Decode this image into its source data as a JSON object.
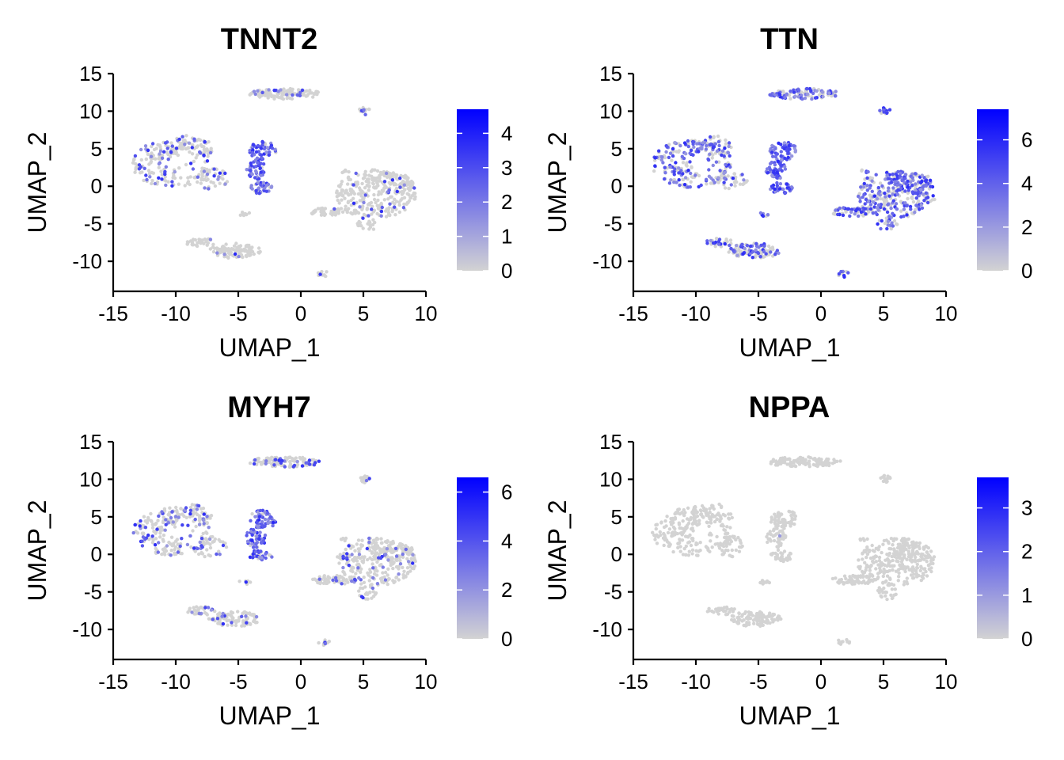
{
  "chart_data": [
    {
      "type": "scatter",
      "title": "TNNT2",
      "xlabel": "UMAP_1",
      "ylabel": "UMAP_2",
      "xlim": [
        -15,
        10
      ],
      "ylim": [
        -14,
        15
      ],
      "xticks": [
        -15,
        -10,
        -5,
        0,
        5,
        10
      ],
      "yticks": [
        -10,
        -5,
        0,
        5,
        10,
        15
      ],
      "xtick_labels": [
        "-15",
        "-10",
        "-5",
        "0",
        "5",
        "10"
      ],
      "ytick_labels": [
        "-10",
        "-5",
        "0",
        "5",
        "10",
        "15"
      ],
      "color_scale": {
        "low": "#d3d3d3",
        "high": "#0000ff",
        "min": 0,
        "max": 4.7,
        "ticks": [
          0,
          1,
          2,
          3,
          4
        ],
        "tick_labels": [
          "0",
          "1",
          "2",
          "3",
          "4"
        ]
      },
      "expression": {
        "c1": 0.25,
        "c2": 0.9,
        "c3": 0.12,
        "c4": 0.12,
        "c5": 0.08,
        "c6": 0.05,
        "c7": 0.1,
        "c8": 0.05,
        "c9": 0.1
      }
    },
    {
      "type": "scatter",
      "title": "TTN",
      "xlabel": "UMAP_1",
      "ylabel": "UMAP_2",
      "xlim": [
        -15,
        10
      ],
      "ylim": [
        -14,
        15
      ],
      "xticks": [
        -15,
        -10,
        -5,
        0,
        5,
        10
      ],
      "yticks": [
        -10,
        -5,
        0,
        5,
        10,
        15
      ],
      "xtick_labels": [
        "-15",
        "-10",
        "-5",
        "0",
        "5",
        "10"
      ],
      "ytick_labels": [
        "-10",
        "-5",
        "0",
        "5",
        "10",
        "15"
      ],
      "color_scale": {
        "low": "#d3d3d3",
        "high": "#0000ff",
        "min": 0,
        "max": 7.4,
        "ticks": [
          0,
          2,
          4,
          6
        ],
        "tick_labels": [
          "0",
          "2",
          "4",
          "6"
        ]
      },
      "expression": {
        "c1": 0.45,
        "c2": 1.0,
        "c3": 0.6,
        "c4": 0.55,
        "c5": 0.55,
        "c6": 0.4,
        "c7": 0.4,
        "c8": 0.5,
        "c9": 0.45
      }
    },
    {
      "type": "scatter",
      "title": "MYH7",
      "xlabel": "UMAP_1",
      "ylabel": "UMAP_2",
      "xlim": [
        -15,
        10
      ],
      "ylim": [
        -14,
        15
      ],
      "xticks": [
        -15,
        -10,
        -5,
        0,
        5,
        10
      ],
      "yticks": [
        -10,
        -5,
        0,
        5,
        10,
        15
      ],
      "xtick_labels": [
        "-15",
        "-10",
        "-5",
        "0",
        "5",
        "10"
      ],
      "ytick_labels": [
        "-10",
        "-5",
        "0",
        "5",
        "10",
        "15"
      ],
      "color_scale": {
        "low": "#d3d3d3",
        "high": "#0000ff",
        "min": 0,
        "max": 6.6,
        "ticks": [
          0,
          2,
          4,
          6
        ],
        "tick_labels": [
          "0",
          "2",
          "4",
          "6"
        ]
      },
      "expression": {
        "c1": 0.22,
        "c2": 0.75,
        "c3": 0.18,
        "c4": 0.12,
        "c5": 0.12,
        "c6": 0.12,
        "c7": 0.15,
        "c8": 0.12,
        "c9": 0.1
      }
    },
    {
      "type": "scatter",
      "title": "NPPA",
      "xlabel": "UMAP_1",
      "ylabel": "UMAP_2",
      "xlim": [
        -15,
        10
      ],
      "ylim": [
        -14,
        15
      ],
      "xticks": [
        -15,
        -10,
        -5,
        0,
        5,
        10
      ],
      "yticks": [
        -10,
        -5,
        0,
        5,
        10,
        15
      ],
      "xtick_labels": [
        "-15",
        "-10",
        "-5",
        "0",
        "5",
        "10"
      ],
      "ytick_labels": [
        "-10",
        "-5",
        "0",
        "5",
        "10",
        "15"
      ],
      "color_scale": {
        "low": "#d3d3d3",
        "high": "#0000ff",
        "min": 0,
        "max": 3.7,
        "ticks": [
          0,
          1,
          2,
          3
        ],
        "tick_labels": [
          "0",
          "1",
          "2",
          "3"
        ]
      },
      "expression": {
        "c1": 0.004,
        "c2": 0.02,
        "c3": 0.0,
        "c4": 0.002,
        "c5": 0.0,
        "c6": 0.0,
        "c7": 0.0,
        "c8": 0.0,
        "c9": 0.0
      }
    }
  ]
}
